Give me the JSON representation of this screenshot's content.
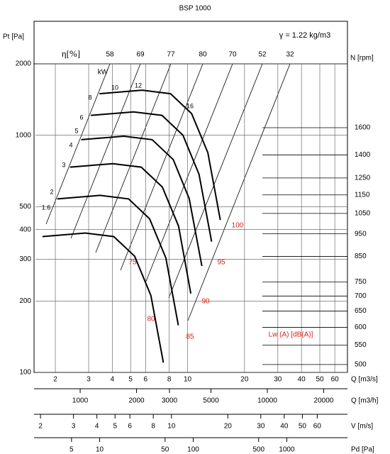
{
  "chart_data": {
    "type": "fan-curve",
    "title": "BSP 1000",
    "density_label": "γ = 1.22 kg/m3",
    "ylabel": "Pt [Pa]",
    "ylim": [
      100,
      2000
    ],
    "yticks": [
      100,
      200,
      300,
      400,
      500,
      1000,
      2000
    ],
    "log_scale": true,
    "grid": true,
    "xlabel": "Q [m3/s]",
    "xlim": [
      1.57,
      70
    ],
    "xticks": [
      2,
      3,
      4,
      5,
      6,
      8,
      10,
      20,
      30,
      40,
      50,
      60
    ],
    "secondary_x_axes": [
      {
        "label": "Q [m3/h]",
        "lim": [
          577,
          26800
        ],
        "ticks": [
          1000,
          2000,
          3000,
          5000,
          10000,
          20000
        ]
      },
      {
        "label": "V [m/s]",
        "lim": [
          1.88,
          87
        ],
        "ticks": [
          2,
          3,
          4,
          5,
          6,
          8,
          10,
          20,
          30,
          40,
          50,
          60
        ]
      },
      {
        "label": "Pd [Pa]",
        "lim": [
          2.06,
          4450
        ],
        "ticks": [
          5,
          10,
          50,
          100,
          500,
          1000
        ]
      }
    ],
    "speed_axis": {
      "label": "N [rpm]",
      "lim": [
        481,
        2189
      ],
      "ticks": [
        1600,
        1400,
        1250,
        1150,
        1050,
        950,
        850,
        750,
        700,
        650,
        600,
        550,
        500
      ]
    },
    "efficiency_title": "η[%]",
    "efficiency_labels": [
      58,
      69,
      77,
      80,
      70,
      52,
      32
    ],
    "power_title": "kW",
    "power_labels": [
      10,
      12,
      16,
      8,
      6,
      5,
      4,
      3,
      2,
      1.6
    ],
    "noise_title": "Lw (A) [dB(A)]",
    "noise_labels": [
      100,
      95,
      90,
      85,
      80,
      75
    ],
    "noise_color": "#e0201a",
    "curves": [
      {
        "color": "#000000",
        "x": [
          3.42,
          5.75,
          8.13,
          10.5,
          12.8,
          14.9
        ],
        "y": [
          1497,
          1549,
          1497,
          1234,
          845,
          439
        ]
      },
      {
        "color": "#000000",
        "x": [
          3.08,
          5.18,
          7.32,
          9.45,
          11.5,
          13.4
        ],
        "y": [
          1213,
          1255,
          1213,
          1000,
          684,
          356
        ]
      },
      {
        "color": "#000000",
        "x": [
          2.74,
          4.6,
          6.5,
          8.4,
          10.2,
          11.9
        ],
        "y": [
          958,
          991,
          958,
          790,
          541,
          281
        ]
      },
      {
        "color": "#000000",
        "x": [
          2.39,
          4.03,
          5.69,
          7.35,
          8.96,
          10.4
        ],
        "y": [
          734,
          759,
          734,
          605,
          414,
          215
        ]
      },
      {
        "color": "#000000",
        "x": [
          2.05,
          3.45,
          4.88,
          6.3,
          7.68,
          8.94
        ],
        "y": [
          539,
          558,
          539,
          444,
          304,
          158
        ]
      },
      {
        "color": "#000000",
        "x": [
          1.71,
          2.88,
          4.07,
          5.25,
          6.4,
          7.45
        ],
        "y": [
          374,
          387,
          374,
          309,
          211,
          110
        ]
      }
    ]
  }
}
